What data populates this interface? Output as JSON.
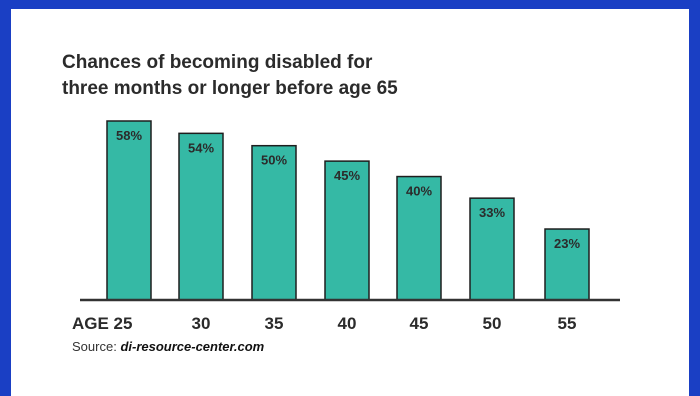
{
  "chart_data": {
    "type": "bar",
    "title_lines": [
      "Chances of becoming disabled for",
      "three months or longer before age 65"
    ],
    "categories": [
      "AGE 25",
      "30",
      "35",
      "40",
      "45",
      "50",
      "55"
    ],
    "values": [
      58,
      54,
      50,
      45,
      40,
      33,
      23
    ],
    "data_labels": [
      "58%",
      "54%",
      "50%",
      "45%",
      "40%",
      "33%",
      "23%"
    ],
    "unit": "%",
    "ylim": [
      0,
      60
    ],
    "grid": false,
    "legend": "none",
    "colors": {
      "bar_fill": "#35b9a5",
      "bar_stroke": "#1e1e1e",
      "axis": "#333333",
      "text": "#2b2b2b",
      "frame": "#1a3fc4"
    }
  },
  "source": {
    "prefix": "Source:",
    "link_text": "di-resource-center.com"
  }
}
